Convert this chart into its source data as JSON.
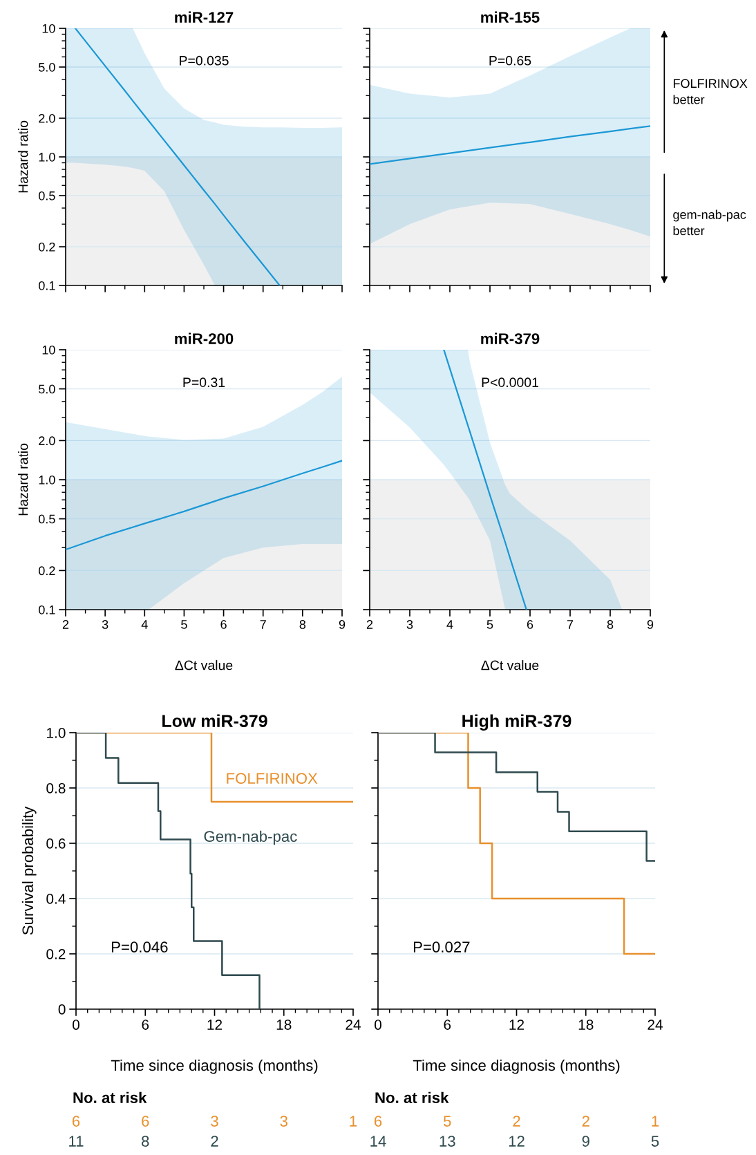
{
  "chart_data": [
    {
      "type": "line",
      "title": "miR-127",
      "ylabel": "Hazard ratio",
      "log": "y",
      "xlim": [
        2,
        9
      ],
      "ylim": [
        0.1,
        10
      ],
      "xticks": [
        2,
        3,
        4,
        5,
        6,
        7,
        8,
        9
      ],
      "yticks": [
        0.1,
        0.2,
        0.5,
        {
          "value": 1,
          "label": "1.0"
        },
        {
          "value": 2,
          "label": "2.0"
        },
        {
          "value": 5,
          "label": "5.0"
        },
        10
      ],
      "tick_labels": "y",
      "grid": "y",
      "bands": [
        {
          "axis": "y",
          "from": 0.1,
          "to": 1,
          "color": "#f0f0f0"
        }
      ],
      "series": [
        {
          "color": "#1b98d5",
          "x": [
            2,
            2.245,
            2.5,
            3,
            3.5,
            3.7,
            4,
            4.5,
            5,
            5.5,
            5.78,
            6,
            6.5,
            7,
            7.42,
            8,
            8.5,
            9
          ],
          "values": [
            null,
            10,
            7.96,
            5.1,
            3.27,
            2.73,
            2.09,
            1.34,
            0.86,
            0.55,
            0.43,
            0.352,
            0.225,
            0.145,
            0.1,
            null,
            null,
            null
          ],
          "upper": [
            10,
            10,
            10,
            10,
            10,
            10,
            6.4,
            3.4,
            2.38,
            1.94,
            1.85,
            1.78,
            1.72,
            1.7,
            1.7,
            1.68,
            1.68,
            1.7
          ],
          "lower": [
            0.9,
            0.9,
            0.89,
            0.87,
            0.84,
            0.82,
            0.78,
            0.54,
            0.27,
            0.145,
            0.1,
            0.1,
            0.1,
            0.1,
            0.1,
            0.1,
            0.1,
            0.1
          ]
        }
      ],
      "annotations": [
        "P=0.035"
      ]
    },
    {
      "type": "line",
      "title": "miR-155",
      "log": "y",
      "xlim": [
        2,
        9
      ],
      "ylim": [
        0.1,
        10
      ],
      "xticks": [
        2,
        3,
        4,
        5,
        6,
        7,
        8,
        9
      ],
      "yticks": [
        0.1,
        0.2,
        0.5,
        1,
        2,
        5,
        10
      ],
      "tick_labels": false,
      "grid": "y",
      "bands": [
        {
          "axis": "y",
          "from": 0.1,
          "to": 1,
          "color": "#f0f0f0"
        }
      ],
      "series": [
        {
          "color": "#1b98d5",
          "x": [
            2,
            3,
            4,
            5,
            6,
            7,
            8,
            8.5,
            9
          ],
          "values": [
            0.88,
            0.97,
            1.07,
            1.18,
            1.3,
            1.44,
            1.58,
            1.66,
            1.74
          ],
          "upper": [
            3.63,
            3.1,
            2.9,
            3.1,
            4.3,
            6.07,
            8.5,
            10,
            10
          ],
          "lower": [
            0.21,
            0.3,
            0.39,
            0.44,
            0.43,
            0.36,
            0.3,
            0.27,
            0.24
          ]
        }
      ],
      "annotations": [
        "P=0.65",
        "FOLFIRINOX better",
        "gem-nab-pac better"
      ]
    },
    {
      "type": "line",
      "title": "miR-200",
      "xlabel": "ΔCt value",
      "ylabel": "Hazard ratio",
      "log": "y",
      "xlim": [
        2,
        9
      ],
      "ylim": [
        0.1,
        10
      ],
      "xticks": [
        2,
        3,
        4,
        5,
        6,
        7,
        8,
        9
      ],
      "yticks": [
        0.1,
        0.2,
        0.5,
        {
          "value": 1,
          "label": "1.0"
        },
        {
          "value": 2,
          "label": "2.0"
        },
        {
          "value": 5,
          "label": "5.0"
        },
        10
      ],
      "grid": "y",
      "bands": [
        {
          "axis": "y",
          "from": 0.1,
          "to": 1,
          "color": "#f0f0f0"
        }
      ],
      "series": [
        {
          "color": "#1b98d5",
          "x": [
            2,
            3,
            4,
            4.1,
            5,
            6,
            7,
            8,
            8.5,
            9
          ],
          "values": [
            0.29,
            0.37,
            0.46,
            0.47,
            0.57,
            0.72,
            0.89,
            1.12,
            1.25,
            1.4
          ],
          "upper": [
            2.77,
            2.45,
            2.17,
            2.15,
            2.02,
            2.07,
            2.55,
            3.77,
            4.72,
            6.2
          ],
          "lower": [
            0.1,
            0.1,
            0.1,
            0.1,
            0.16,
            0.25,
            0.3,
            0.32,
            0.32,
            0.32
          ]
        }
      ],
      "annotations": [
        "P=0.31"
      ]
    },
    {
      "type": "line",
      "title": "miR-379",
      "xlabel": "ΔCt value",
      "log": "y",
      "xlim": [
        2,
        9
      ],
      "ylim": [
        0.1,
        10
      ],
      "xticks": [
        2,
        3,
        4,
        5,
        6,
        7,
        8,
        9
      ],
      "yticks": [
        0.1,
        0.2,
        0.5,
        1,
        2,
        5,
        10
      ],
      "tick_labels": "x",
      "grid": "y",
      "bands": [
        {
          "axis": "y",
          "from": 0.1,
          "to": 1,
          "color": "#f0f0f0"
        }
      ],
      "series": [
        {
          "color": "#1b98d5",
          "x": [
            2,
            3,
            3.85,
            4,
            4.45,
            4.5,
            5,
            5.38,
            5.5,
            5.91,
            6,
            7,
            8,
            8.3,
            9
          ],
          "values": [
            null,
            null,
            10,
            7.15,
            2.61,
            2.34,
            0.76,
            0.33,
            0.25,
            0.1,
            null,
            null,
            null,
            null,
            null
          ],
          "upper": [
            10,
            10,
            10,
            10,
            10,
            8,
            1.93,
            0.91,
            0.78,
            0.6,
            0.57,
            0.34,
            0.17,
            0.1,
            0.1
          ],
          "lower": [
            4.69,
            2.52,
            1.3,
            1.13,
            0.73,
            0.69,
            0.34,
            0.1,
            0.1,
            0.1,
            0.1,
            0.1,
            0.1,
            0.1,
            0.1
          ]
        }
      ],
      "annotations": [
        "P<0.0001"
      ]
    },
    {
      "type": "step",
      "title": "Low miR-379",
      "xlabel": "Time since diagnosis (months)",
      "ylabel": "Survival probability",
      "xlim": [
        0,
        24
      ],
      "ylim": [
        0,
        1
      ],
      "xticks": [
        0,
        6,
        12,
        18,
        24
      ],
      "yticks": [
        0,
        0.2,
        0.4,
        0.6,
        0.8,
        {
          "value": 1,
          "label": "1.0"
        }
      ],
      "grid": "y",
      "series": [
        {
          "name": "FOLFIRINOX",
          "color": "#e8902c",
          "x": [
            0,
            11.73,
            24
          ],
          "values": [
            1,
            0.75,
            0.75
          ]
        },
        {
          "name": "Gem-nab-pac",
          "color": "#2f4a4f",
          "x": [
            0,
            2.58,
            3.67,
            7.12,
            7.32,
            9.91,
            10.01,
            10.19,
            12.65,
            15.89
          ],
          "values": [
            1,
            0.909,
            0.818,
            0.716,
            0.614,
            0.49,
            0.368,
            0.246,
            0.123,
            0
          ]
        }
      ],
      "annotations": [
        "P=0.046",
        "No. at risk",
        "6",
        "6",
        "3",
        "3",
        "1",
        "11",
        "8",
        "2"
      ]
    },
    {
      "type": "step",
      "title": "High miR-379",
      "xlabel": "Time since diagnosis (months)",
      "xlim": [
        0,
        24
      ],
      "ylim": [
        0,
        1
      ],
      "xticks": [
        0,
        6,
        12,
        18,
        24
      ],
      "yticks": [
        0,
        0.2,
        0.4,
        0.6,
        0.8,
        1
      ],
      "tick_labels": "x",
      "grid": "y",
      "series": [
        {
          "color": "#e8902c",
          "x": [
            0,
            7.81,
            8.84,
            9.88,
            21.31,
            24
          ],
          "values": [
            1,
            0.8,
            0.6,
            0.4,
            0.2,
            0.2
          ]
        },
        {
          "color": "#2f4a4f",
          "x": [
            0,
            4.94,
            10.24,
            13.81,
            15.56,
            16.55,
            23.26,
            24
          ],
          "values": [
            1,
            0.929,
            0.857,
            0.786,
            0.714,
            0.643,
            0.536,
            0.536
          ]
        }
      ],
      "annotations": [
        "P=0.027",
        "No. at risk",
        "6",
        "5",
        "2",
        "2",
        "1",
        "14",
        "13",
        "12",
        "9",
        "5"
      ]
    }
  ]
}
